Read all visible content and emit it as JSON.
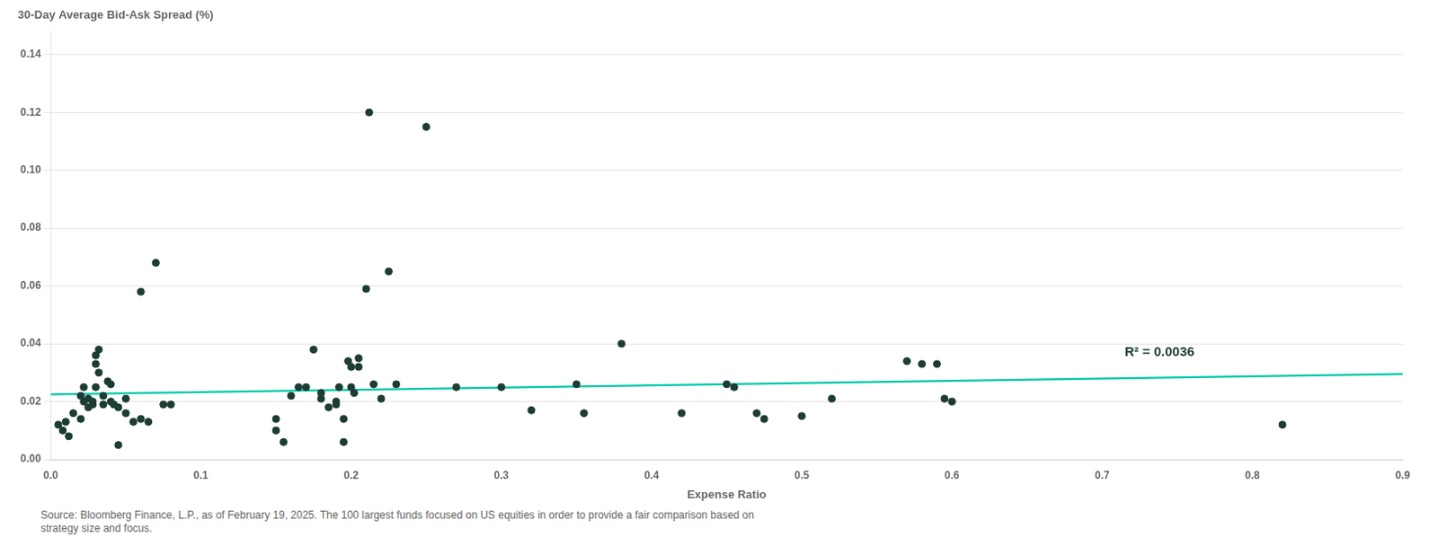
{
  "chart_data": {
    "type": "scatter",
    "y_label": "30-Day Average Bid-Ask Spread (%)",
    "x_label": "Expense Ratio",
    "series": [
      {
        "type": "scatter",
        "color": "#1d3c34",
        "x": [
          0.005,
          0.008,
          0.01,
          0.012,
          0.015,
          0.02,
          0.02,
          0.022,
          0.022,
          0.025,
          0.025,
          0.028,
          0.028,
          0.03,
          0.03,
          0.03,
          0.032,
          0.032,
          0.035,
          0.035,
          0.038,
          0.04,
          0.04,
          0.042,
          0.045,
          0.045,
          0.05,
          0.05,
          0.055,
          0.06,
          0.06,
          0.065,
          0.07,
          0.075,
          0.08,
          0.15,
          0.15,
          0.155,
          0.16,
          0.165,
          0.17,
          0.175,
          0.18,
          0.18,
          0.185,
          0.19,
          0.19,
          0.192,
          0.195,
          0.195,
          0.198,
          0.2,
          0.2,
          0.202,
          0.205,
          0.205,
          0.21,
          0.212,
          0.215,
          0.22,
          0.225,
          0.23,
          0.25,
          0.27,
          0.3,
          0.32,
          0.35,
          0.355,
          0.38,
          0.42,
          0.45,
          0.455,
          0.47,
          0.475,
          0.5,
          0.52,
          0.57,
          0.58,
          0.59,
          0.595,
          0.6,
          0.82
        ],
        "values": [
          0.012,
          0.01,
          0.013,
          0.008,
          0.016,
          0.022,
          0.014,
          0.02,
          0.025,
          0.018,
          0.021,
          0.02,
          0.019,
          0.036,
          0.033,
          0.025,
          0.038,
          0.03,
          0.022,
          0.019,
          0.027,
          0.026,
          0.02,
          0.019,
          0.018,
          0.005,
          0.021,
          0.016,
          0.013,
          0.014,
          0.058,
          0.013,
          0.068,
          0.019,
          0.019,
          0.014,
          0.01,
          0.006,
          0.022,
          0.025,
          0.025,
          0.038,
          0.023,
          0.021,
          0.018,
          0.02,
          0.019,
          0.025,
          0.014,
          0.006,
          0.034,
          0.032,
          0.025,
          0.023,
          0.035,
          0.032,
          0.059,
          0.12,
          0.026,
          0.021,
          0.065,
          0.026,
          0.115,
          0.025,
          0.025,
          0.017,
          0.026,
          0.016,
          0.04,
          0.016,
          0.026,
          0.025,
          0.016,
          0.014,
          0.015,
          0.021,
          0.034,
          0.033,
          0.033,
          0.021,
          0.02,
          0.012
        ]
      },
      {
        "type": "line",
        "color": "#00c9a7",
        "x": [
          0.0,
          0.9
        ],
        "values": [
          0.0225,
          0.0295
        ]
      }
    ],
    "annotations": [
      {
        "text": "R² = 0.0036",
        "x": 0.715,
        "y": 0.037,
        "color": "#1d3c34"
      }
    ],
    "source": "Source: Bloomberg Finance, L.P., as of February 19, 2025. The 100 largest funds focused on US equities in order to provide a fair comparison based on\nstrategy size and focus.",
    "xlim": [
      0.0,
      0.9
    ],
    "ylim": [
      0.0,
      0.148
    ],
    "xticks": [
      {
        "value": 0.0,
        "label": "0.0"
      },
      0.1,
      0.2,
      0.3,
      0.4,
      0.5,
      0.6,
      0.7,
      0.8,
      0.9
    ],
    "yticks": [
      {
        "value": 0.0,
        "label": "0.00"
      },
      0.02,
      0.04,
      0.06,
      0.08,
      {
        "value": 0.1,
        "label": "0.10"
      },
      0.12,
      0.14
    ],
    "grid": "y"
  }
}
